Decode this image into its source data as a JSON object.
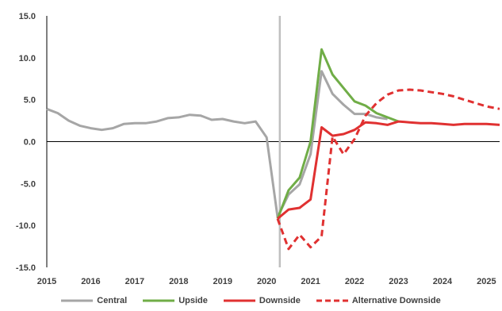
{
  "chart_data": {
    "type": "line",
    "xlim": [
      2015,
      2025.3
    ],
    "ylim": [
      -15,
      15
    ],
    "x_ticks": [
      "2015",
      "2016",
      "2017",
      "2018",
      "2019",
      "2020",
      "2021",
      "2022",
      "2023",
      "2024",
      "2025"
    ],
    "y_ticks": [
      "15.0",
      "10.0",
      "5.0",
      "0.0",
      "-5.0",
      "-10.0",
      "-15.0"
    ],
    "vertical_marker_x": 2020.3,
    "grid": false,
    "legend_position": "bottom",
    "series": [
      {
        "name": "Central",
        "color": "#a6a6a6",
        "dash": "solid",
        "points": [
          [
            2015.0,
            3.9
          ],
          [
            2015.25,
            3.4
          ],
          [
            2015.5,
            2.5
          ],
          [
            2015.75,
            1.9
          ],
          [
            2016.0,
            1.6
          ],
          [
            2016.25,
            1.4
          ],
          [
            2016.5,
            1.6
          ],
          [
            2016.75,
            2.1
          ],
          [
            2017.0,
            2.2
          ],
          [
            2017.25,
            2.2
          ],
          [
            2017.5,
            2.4
          ],
          [
            2017.75,
            2.8
          ],
          [
            2018.0,
            2.9
          ],
          [
            2018.25,
            3.2
          ],
          [
            2018.5,
            3.1
          ],
          [
            2018.75,
            2.6
          ],
          [
            2019.0,
            2.7
          ],
          [
            2019.25,
            2.4
          ],
          [
            2019.5,
            2.2
          ],
          [
            2019.75,
            2.4
          ],
          [
            2020.0,
            0.5
          ],
          [
            2020.25,
            -9.0
          ],
          [
            2020.5,
            -6.3
          ],
          [
            2020.75,
            -5.1
          ],
          [
            2021.0,
            -1.5
          ],
          [
            2021.25,
            8.4
          ],
          [
            2021.5,
            5.7
          ],
          [
            2021.75,
            4.4
          ],
          [
            2022.0,
            3.3
          ],
          [
            2022.25,
            3.3
          ],
          [
            2022.5,
            2.9
          ],
          [
            2022.75,
            2.7
          ]
        ]
      },
      {
        "name": "Upside",
        "color": "#70ad47",
        "dash": "solid",
        "points": [
          [
            2020.25,
            -9.2
          ],
          [
            2020.5,
            -5.8
          ],
          [
            2020.75,
            -4.3
          ],
          [
            2021.0,
            0.0
          ],
          [
            2021.25,
            11.0
          ],
          [
            2021.5,
            8.0
          ],
          [
            2021.75,
            6.4
          ],
          [
            2022.0,
            4.8
          ],
          [
            2022.25,
            4.3
          ],
          [
            2022.5,
            3.4
          ],
          [
            2022.75,
            2.9
          ],
          [
            2023.0,
            2.4
          ]
        ]
      },
      {
        "name": "Downside",
        "color": "#e03131",
        "dash": "solid",
        "points": [
          [
            2020.25,
            -9.2
          ],
          [
            2020.5,
            -8.1
          ],
          [
            2020.75,
            -7.9
          ],
          [
            2021.0,
            -6.9
          ],
          [
            2021.25,
            1.7
          ],
          [
            2021.5,
            0.7
          ],
          [
            2021.75,
            0.9
          ],
          [
            2022.0,
            1.4
          ],
          [
            2022.25,
            2.3
          ],
          [
            2022.5,
            2.2
          ],
          [
            2022.75,
            2.0
          ],
          [
            2023.0,
            2.4
          ],
          [
            2023.25,
            2.3
          ],
          [
            2023.5,
            2.2
          ],
          [
            2023.75,
            2.2
          ],
          [
            2024.0,
            2.1
          ],
          [
            2024.25,
            2.0
          ],
          [
            2024.5,
            2.1
          ],
          [
            2024.75,
            2.1
          ],
          [
            2025.0,
            2.1
          ],
          [
            2025.3,
            2.0
          ]
        ]
      },
      {
        "name": "Alternative Downside",
        "color": "#e03131",
        "dash": "dashed",
        "points": [
          [
            2020.25,
            -9.2
          ],
          [
            2020.5,
            -12.8
          ],
          [
            2020.75,
            -11.1
          ],
          [
            2021.0,
            -12.6
          ],
          [
            2021.25,
            -11.3
          ],
          [
            2021.5,
            0.6
          ],
          [
            2021.75,
            -1.5
          ],
          [
            2022.0,
            0.3
          ],
          [
            2022.25,
            3.1
          ],
          [
            2022.5,
            4.6
          ],
          [
            2022.75,
            5.6
          ],
          [
            2023.0,
            6.1
          ],
          [
            2023.25,
            6.2
          ],
          [
            2023.5,
            6.1
          ],
          [
            2023.75,
            5.9
          ],
          [
            2024.0,
            5.7
          ],
          [
            2024.25,
            5.4
          ],
          [
            2024.5,
            5.0
          ],
          [
            2024.75,
            4.6
          ],
          [
            2025.0,
            4.2
          ],
          [
            2025.3,
            3.9
          ]
        ]
      }
    ]
  }
}
